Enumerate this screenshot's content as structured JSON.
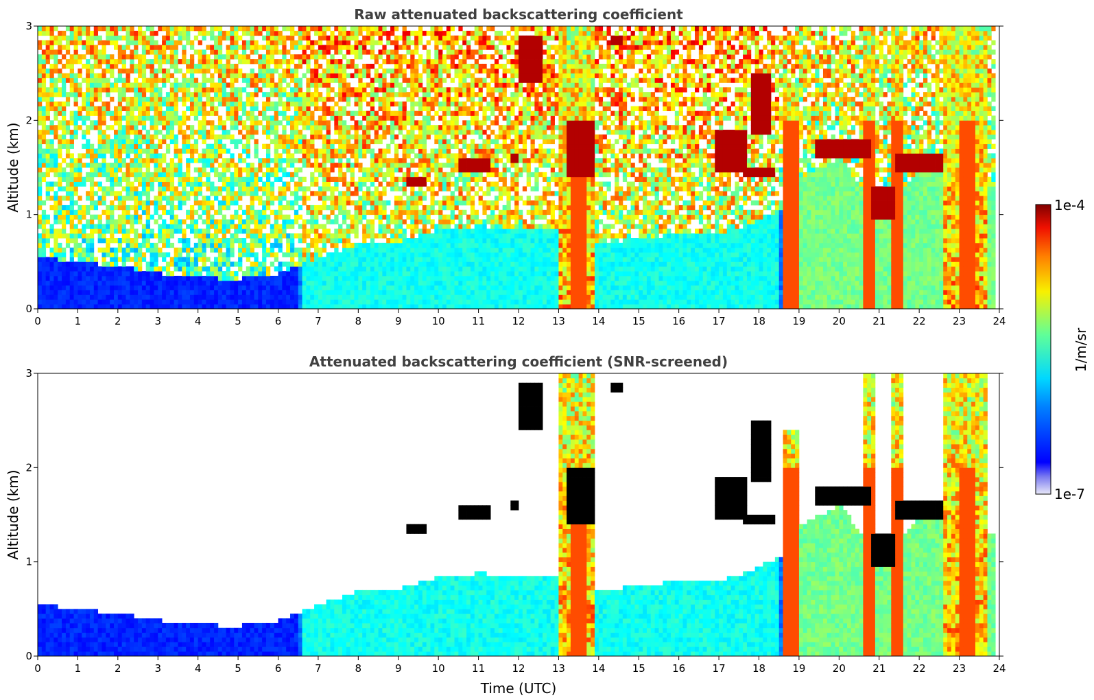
{
  "chart_data": [
    {
      "type": "heatmap",
      "title": "Raw attenuated backscattering coefficient",
      "xlabel": "",
      "ylabel": "Altitude (km)",
      "xlim": [
        0,
        24
      ],
      "ylim": [
        0,
        3
      ],
      "xticks": [
        "0",
        "1",
        "2",
        "3",
        "4",
        "5",
        "6",
        "7",
        "8",
        "9",
        "10",
        "11",
        "12",
        "13",
        "14",
        "15",
        "16",
        "17",
        "18",
        "19",
        "20",
        "21",
        "22",
        "23",
        "24"
      ],
      "yticks": [
        "0",
        "1",
        "2",
        "3"
      ],
      "screened": false
    },
    {
      "type": "heatmap",
      "title": "Attenuated backscattering coefficient (SNR-screened)",
      "xlabel": "Time (UTC)",
      "ylabel": "Altitude (km)",
      "xlim": [
        0,
        24
      ],
      "ylim": [
        0,
        3
      ],
      "xticks": [
        "0",
        "1",
        "2",
        "3",
        "4",
        "5",
        "6",
        "7",
        "8",
        "9",
        "10",
        "11",
        "12",
        "13",
        "14",
        "15",
        "16",
        "17",
        "18",
        "19",
        "20",
        "21",
        "22",
        "23",
        "24"
      ],
      "yticks": [
        "0",
        "1",
        "2",
        "3"
      ],
      "screened": true
    }
  ],
  "colorbar": {
    "max_label": "1e-4",
    "min_label": "1e-7",
    "label": "1/m/sr",
    "colormap": "jet",
    "scale": "log"
  },
  "aerosol_layer": [
    {
      "t": 0,
      "top": 0.55
    },
    {
      "t": 1,
      "top": 0.5
    },
    {
      "t": 2,
      "top": 0.45
    },
    {
      "t": 3,
      "top": 0.38
    },
    {
      "t": 4,
      "top": 0.33
    },
    {
      "t": 5,
      "top": 0.32
    },
    {
      "t": 6,
      "top": 0.38
    },
    {
      "t": 7,
      "top": 0.55
    },
    {
      "t": 8,
      "top": 0.7
    },
    {
      "t": 9,
      "top": 0.72
    },
    {
      "t": 10,
      "top": 0.85
    },
    {
      "t": 11,
      "top": 0.88
    },
    {
      "t": 12,
      "top": 0.85
    },
    {
      "t": 13,
      "top": 0.85
    },
    {
      "t": 14,
      "top": 0.7
    },
    {
      "t": 15,
      "top": 0.75
    },
    {
      "t": 16,
      "top": 0.8
    },
    {
      "t": 17,
      "top": 0.8
    },
    {
      "t": 18,
      "top": 0.95
    },
    {
      "t": 18.6,
      "top": 1.1
    },
    {
      "t": 19,
      "top": 1.4
    },
    {
      "t": 20,
      "top": 1.6
    },
    {
      "t": 21,
      "top": 1.0
    },
    {
      "t": 22,
      "top": 1.5
    },
    {
      "t": 23,
      "top": 1.4
    },
    {
      "t": 23.8,
      "top": 1.3
    }
  ],
  "cloud_features": [
    {
      "t0": 9.2,
      "t1": 9.6,
      "z0": 1.3,
      "z1": 1.4
    },
    {
      "t0": 10.5,
      "t1": 11.2,
      "z0": 1.45,
      "z1": 1.6
    },
    {
      "t0": 11.8,
      "t1": 11.9,
      "z0": 1.55,
      "z1": 1.65
    },
    {
      "t0": 12.0,
      "t1": 12.5,
      "z0": 2.4,
      "z1": 2.9
    },
    {
      "t0": 13.2,
      "t1": 13.8,
      "z0": 1.4,
      "z1": 2.0
    },
    {
      "t0": 14.3,
      "t1": 14.5,
      "z0": 2.8,
      "z1": 2.9
    },
    {
      "t0": 16.9,
      "t1": 17.6,
      "z0": 1.45,
      "z1": 1.9
    },
    {
      "t0": 17.6,
      "t1": 18.3,
      "z0": 1.4,
      "z1": 1.5
    },
    {
      "t0": 17.8,
      "t1": 18.2,
      "z0": 1.85,
      "z1": 2.5
    },
    {
      "t0": 19.4,
      "t1": 20.7,
      "z0": 1.6,
      "z1": 1.8
    },
    {
      "t0": 20.8,
      "t1": 21.3,
      "z0": 0.95,
      "z1": 1.3
    },
    {
      "t0": 21.4,
      "t1": 22.5,
      "z0": 1.45,
      "z1": 1.65
    }
  ],
  "plume_columns": [
    {
      "t0": 13.0,
      "t1": 13.8,
      "top": 3.0
    },
    {
      "t0": 18.6,
      "t1": 18.9,
      "top": 2.4
    },
    {
      "t0": 20.6,
      "t1": 20.8,
      "top": 3.0
    },
    {
      "t0": 21.3,
      "t1": 21.5,
      "top": 3.0
    },
    {
      "t0": 22.6,
      "t1": 23.6,
      "top": 3.0
    }
  ]
}
